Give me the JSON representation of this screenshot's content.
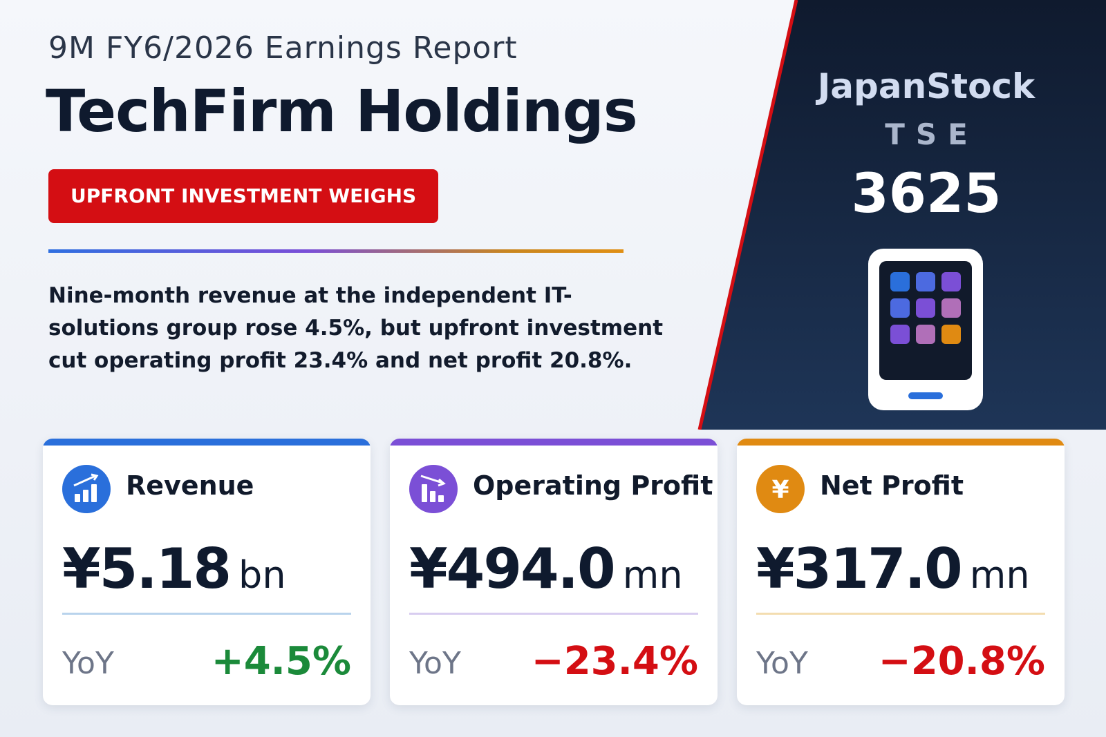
{
  "header": {
    "kicker": "9M FY6/2026 Earnings Report",
    "company": "TechFirm Holdings",
    "badge": "UPFRONT INVESTMENT WEIGHS",
    "summary": "Nine-month revenue at the independent IT-solutions group rose 4.5%, but upfront investment cut operating profit 23.4% and net profit 20.8%."
  },
  "side_panel": {
    "brand": "JapanStock",
    "exchange": "TSE",
    "ticker": "3625",
    "icon": "tablet-icon"
  },
  "cards": [
    {
      "title": "Revenue",
      "value": "¥5.18",
      "unit": "bn",
      "yoy_label": "YoY",
      "yoy": "+4.5%",
      "icon": "bar-chart-up-icon",
      "accent": "#2a6fdb",
      "yoy_color": "#1b8a3a",
      "rule_color": "#b9d3ec"
    },
    {
      "title": "Operating Profit",
      "value": "¥494.0",
      "unit": "mn",
      "yoy_label": "YoY",
      "yoy": "−23.4%",
      "icon": "bar-chart-down-icon",
      "accent": "#7b4fd6",
      "yoy_color": "#d40e13",
      "rule_color": "#d8cdf0"
    },
    {
      "title": "Net Profit",
      "value": "¥317.0",
      "unit": "mn",
      "yoy_label": "YoY",
      "yoy": "−20.8%",
      "icon": "yen-icon",
      "icon_glyph": "¥",
      "accent": "#e08a12",
      "yoy_color": "#d40e13",
      "rule_color": "#f3ddb0"
    }
  ],
  "colors": {
    "badge": "#d40e13",
    "panel_dark": "#0f1a2e",
    "panel_edge": "#d40e13"
  }
}
